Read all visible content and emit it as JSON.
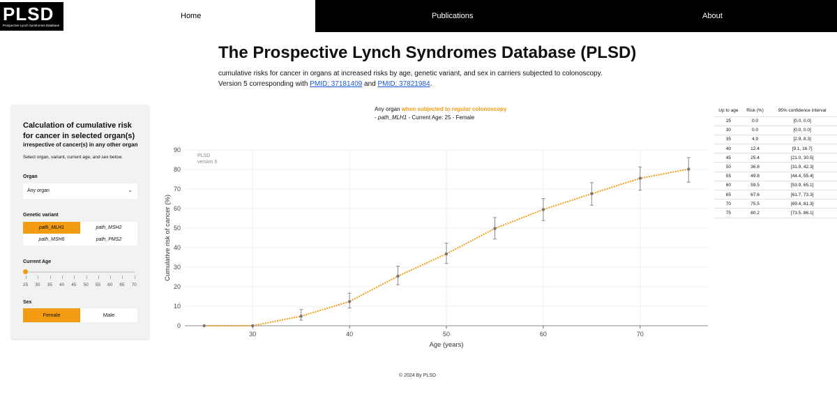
{
  "header": {
    "logo_text": "PLSD",
    "logo_subtitle": "Prospective Lynch Syndromes Database",
    "nav": [
      "Home",
      "Publications",
      "About"
    ]
  },
  "main": {
    "title": "The Prospective Lynch Syndromes Database (PLSD)",
    "subtitle": "cumulative risks for cancer in organs at increased risks by age, genetic variant, and sex in carriers subjected to colonoscopy.",
    "version_prefix": "Version 5 corresponding with ",
    "pmid1": "PMID: 37181409",
    "and_text": " and ",
    "pmid2": "PMID: 37821984",
    "end_period": "."
  },
  "panel": {
    "title": "Calculation of cumulative risk for cancer in selected organ(s)",
    "irrespective": "irrespective of cancer(s) in any other organ",
    "instruction": "Select organ, variant, current age, and sex below.",
    "organ_label": "Organ",
    "organ_value": "Any organ",
    "variant_label": "Genetic variant",
    "variants": [
      "path_MLH1",
      "path_MSH2",
      "path_MSH6",
      "path_PMS2"
    ],
    "selected_variant": "path_MLH1",
    "age_label": "Current Age",
    "age_ticks": [
      "25",
      "30",
      "35",
      "40",
      "45",
      "50",
      "55",
      "60",
      "65",
      "70"
    ],
    "current_age": 25,
    "sex_label": "Sex",
    "sex_options": [
      "Female",
      "Male"
    ],
    "selected_sex": "Female"
  },
  "chart_header": {
    "organ": "Any organ ",
    "condition": "when subjected to regular colonoscopy",
    "line2_prefix": "- ",
    "variant": "path_MLH1",
    "line2_rest": " - Current Age: 25 - Female"
  },
  "chart_data": {
    "type": "line",
    "watermark": [
      "PLSD",
      "version 5"
    ],
    "xlabel": "Age (years)",
    "ylabel": "Cumulative risk of cancer (%)",
    "xlim": [
      23,
      77
    ],
    "ylim": [
      0,
      90
    ],
    "xticks": [
      30,
      40,
      50,
      60,
      70
    ],
    "yticks": [
      0,
      10,
      20,
      30,
      40,
      50,
      60,
      70,
      80,
      90
    ],
    "x": [
      25,
      30,
      35,
      40,
      45,
      50,
      55,
      60,
      65,
      70,
      75
    ],
    "y": [
      0.0,
      0.0,
      4.9,
      12.4,
      25.4,
      36.8,
      49.8,
      59.5,
      67.6,
      75.5,
      80.2
    ],
    "ci_low": [
      0.0,
      0.0,
      2.9,
      9.1,
      21.0,
      31.9,
      44.4,
      53.9,
      61.7,
      69.4,
      73.5
    ],
    "ci_high": [
      0.0,
      0.0,
      8.3,
      16.7,
      30.5,
      42.3,
      55.4,
      65.1,
      73.3,
      81.3,
      86.1
    ],
    "line_color": "#f39c12",
    "point_color": "#777777",
    "grid": true
  },
  "table": {
    "headers": [
      "Up to age",
      "Risk (%)",
      "95% confidence interval"
    ],
    "rows": [
      [
        "25",
        "0.0",
        "[0.0, 0.0]"
      ],
      [
        "30",
        "0.0",
        "[0.0, 0.0]"
      ],
      [
        "35",
        "4.9",
        "[2.9, 8.3]"
      ],
      [
        "40",
        "12.4",
        "[9.1, 16.7]"
      ],
      [
        "45",
        "25.4",
        "[21.0, 30.5]"
      ],
      [
        "50",
        "36.8",
        "[31.9, 42.3]"
      ],
      [
        "55",
        "49.8",
        "[44.4, 55.4]"
      ],
      [
        "60",
        "59.5",
        "[53.9, 65.1]"
      ],
      [
        "65",
        "67.6",
        "[61.7, 73.3]"
      ],
      [
        "70",
        "75.5",
        "[69.4, 81.3]"
      ],
      [
        "75",
        "80.2",
        "[73.5, 86.1]"
      ]
    ]
  },
  "footer": "© 2024 By PLSD",
  "colors": {
    "accent": "#f39c12",
    "link": "#1a56db",
    "nav_dark": "#000000",
    "panel_bg": "#f1f2f4"
  }
}
